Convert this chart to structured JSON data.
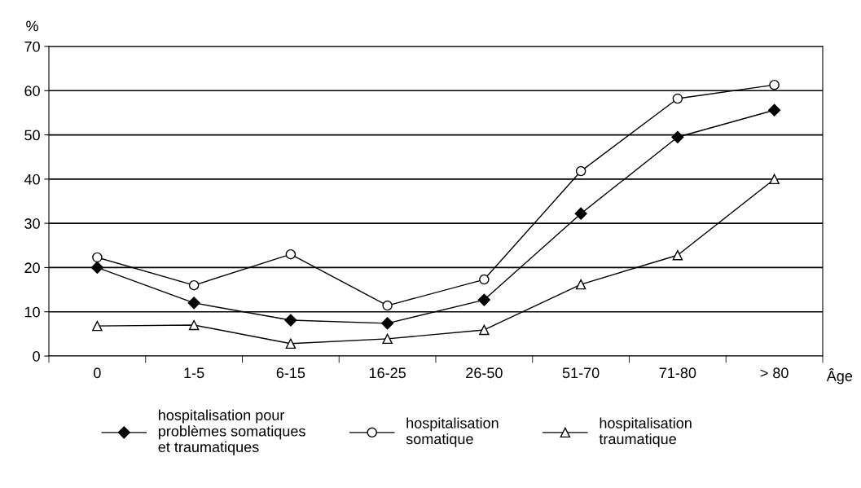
{
  "chart_data": {
    "type": "line",
    "xlabel": "Âge",
    "ylabel": "%",
    "categories": [
      "0",
      "1-5",
      "6-15",
      "16-25",
      "26-50",
      "51-70",
      "71-80",
      "> 80"
    ],
    "series": [
      {
        "name": "hospitalisation pour\nproblèmes somatiques\net traumatiques",
        "color": "#000000",
        "marker": "diamond",
        "values": [
          20,
          12,
          8.1,
          7.4,
          12.7,
          32.2,
          49.5,
          55.6
        ]
      },
      {
        "name": "hospitalisation\nsomatique",
        "color": "#000000",
        "marker": "circle",
        "values": [
          22.3,
          16,
          23,
          11.4,
          17.3,
          41.8,
          58.2,
          61.3
        ]
      },
      {
        "name": "hospitalisation\ntraumatique",
        "color": "#000000",
        "marker": "triangle",
        "values": [
          6.8,
          7,
          2.8,
          3.9,
          5.9,
          16.2,
          22.8,
          40
        ]
      }
    ],
    "ylim": [
      0,
      70
    ],
    "yticks": [
      0,
      10,
      20,
      30,
      40,
      50,
      60,
      70
    ],
    "grid": "y",
    "legend": "bottom",
    "line_style": "solid"
  }
}
